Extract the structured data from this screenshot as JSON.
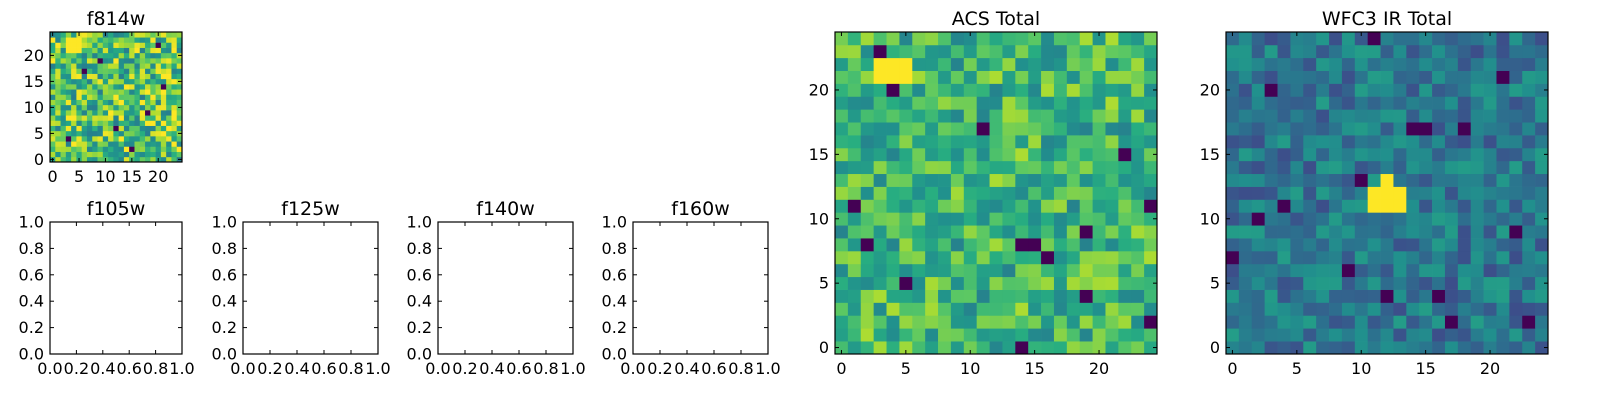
{
  "chart_data": [
    {
      "type": "heatmap",
      "title": "f814w",
      "xlim": [
        0,
        24
      ],
      "ylim": [
        0,
        24
      ],
      "xticks": [
        0,
        5,
        10,
        15,
        20
      ],
      "yticks": [
        0,
        5,
        10,
        15,
        20
      ],
      "grid_size": 25,
      "colormap": "viridis",
      "bright_spot": {
        "x_range": [
          3,
          5
        ],
        "y_range": [
          21,
          23
        ]
      },
      "dark_cells": [
        [
          15,
          2
        ],
        [
          18,
          9
        ],
        [
          21,
          14
        ],
        [
          6,
          17
        ],
        [
          3,
          4
        ],
        [
          12,
          6
        ],
        [
          9,
          19
        ],
        [
          20,
          22
        ]
      ]
    },
    {
      "type": "heatmap",
      "title": "f105w",
      "xlim": [
        0.0,
        1.0
      ],
      "ylim": [
        0.0,
        1.0
      ],
      "xticks": [
        "0.0",
        "0.2",
        "0.4",
        "0.6",
        "0.8",
        "1.0"
      ],
      "yticks": [
        "0.0",
        "0.2",
        "0.4",
        "0.6",
        "0.8",
        "1.0"
      ],
      "empty": true
    },
    {
      "type": "heatmap",
      "title": "f125w",
      "xlim": [
        0.0,
        1.0
      ],
      "ylim": [
        0.0,
        1.0
      ],
      "xticks": [
        "0.0",
        "0.2",
        "0.4",
        "0.6",
        "0.8",
        "1.0"
      ],
      "yticks": [
        "0.0",
        "0.2",
        "0.4",
        "0.6",
        "0.8",
        "1.0"
      ],
      "empty": true
    },
    {
      "type": "heatmap",
      "title": "f140w",
      "xlim": [
        0.0,
        1.0
      ],
      "ylim": [
        0.0,
        1.0
      ],
      "xticks": [
        "0.0",
        "0.2",
        "0.4",
        "0.6",
        "0.8",
        "1.0"
      ],
      "yticks": [
        "0.0",
        "0.2",
        "0.4",
        "0.6",
        "0.8",
        "1.0"
      ],
      "empty": true
    },
    {
      "type": "heatmap",
      "title": "f160w",
      "xlim": [
        0.0,
        1.0
      ],
      "ylim": [
        0.0,
        1.0
      ],
      "xticks": [
        "0.0",
        "0.2",
        "0.4",
        "0.6",
        "0.8",
        "1.0"
      ],
      "yticks": [
        "0.0",
        "0.2",
        "0.4",
        "0.6",
        "0.8",
        "1.0"
      ],
      "empty": true
    },
    {
      "type": "heatmap",
      "title": "ACS Total",
      "xlim": [
        0,
        24
      ],
      "ylim": [
        0,
        24
      ],
      "xticks": [
        0,
        5,
        10,
        15,
        20
      ],
      "yticks": [
        0,
        5,
        10,
        15,
        20
      ],
      "grid_size": 25,
      "colormap": "viridis",
      "bright_spot": {
        "x_range": [
          3,
          5
        ],
        "y_range": [
          21,
          22
        ]
      },
      "dark_cells": [
        [
          4,
          20
        ],
        [
          1,
          11
        ],
        [
          2,
          8
        ],
        [
          5,
          5
        ],
        [
          14,
          8
        ],
        [
          15,
          8
        ],
        [
          16,
          7
        ],
        [
          19,
          9
        ],
        [
          22,
          15
        ],
        [
          24,
          11
        ],
        [
          14,
          0
        ],
        [
          19,
          4
        ],
        [
          3,
          23
        ],
        [
          11,
          17
        ],
        [
          24,
          2
        ]
      ]
    },
    {
      "type": "heatmap",
      "title": "WFC3 IR Total",
      "xlim": [
        0,
        24
      ],
      "ylim": [
        0,
        24
      ],
      "xticks": [
        0,
        5,
        10,
        15,
        20
      ],
      "yticks": [
        0,
        5,
        10,
        15,
        20
      ],
      "grid_size": 25,
      "colormap": "viridis",
      "bright_spot": {
        "x_range": [
          11,
          13
        ],
        "y_range": [
          11,
          12
        ]
      },
      "bright_spot_extra": [
        [
          12,
          13
        ]
      ],
      "dark_cells": [
        [
          3,
          20
        ],
        [
          2,
          10
        ],
        [
          4,
          11
        ],
        [
          14,
          17
        ],
        [
          15,
          17
        ],
        [
          18,
          17
        ],
        [
          21,
          21
        ],
        [
          9,
          6
        ],
        [
          12,
          4
        ],
        [
          16,
          4
        ],
        [
          17,
          2
        ],
        [
          23,
          2
        ],
        [
          0,
          7
        ],
        [
          10,
          13
        ],
        [
          22,
          9
        ],
        [
          11,
          24
        ]
      ]
    }
  ]
}
